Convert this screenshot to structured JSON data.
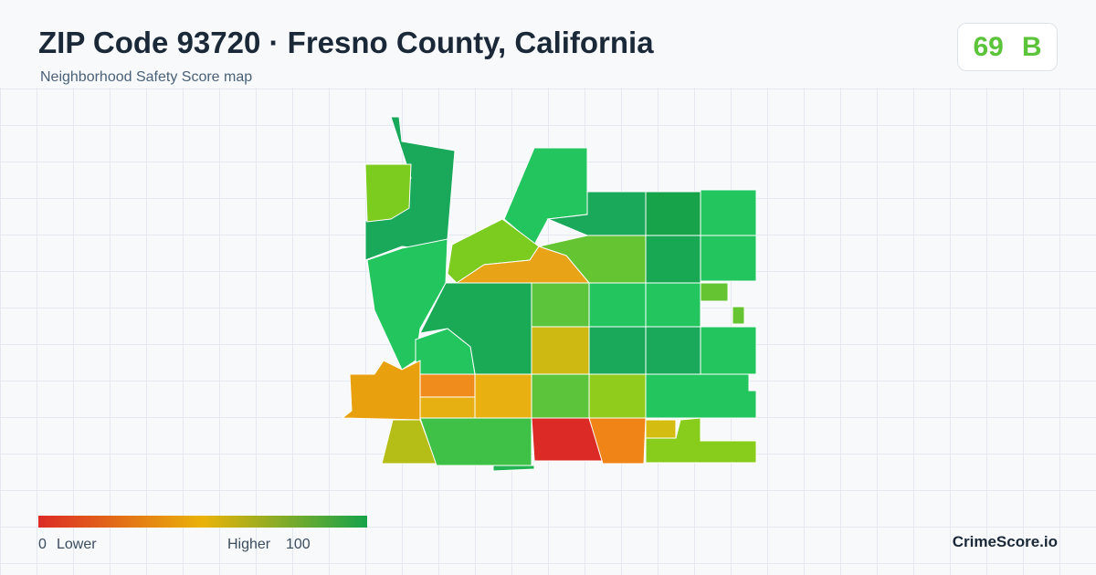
{
  "header": {
    "title": "ZIP Code 93720 · Fresno County, California",
    "subtitle": "Neighborhood Safety Score map"
  },
  "score": {
    "value": "69",
    "grade": "B"
  },
  "legend": {
    "min": "0",
    "min_label": "Lower",
    "max_label": "Higher",
    "max": "100"
  },
  "brand": "CrimeScore.io"
}
